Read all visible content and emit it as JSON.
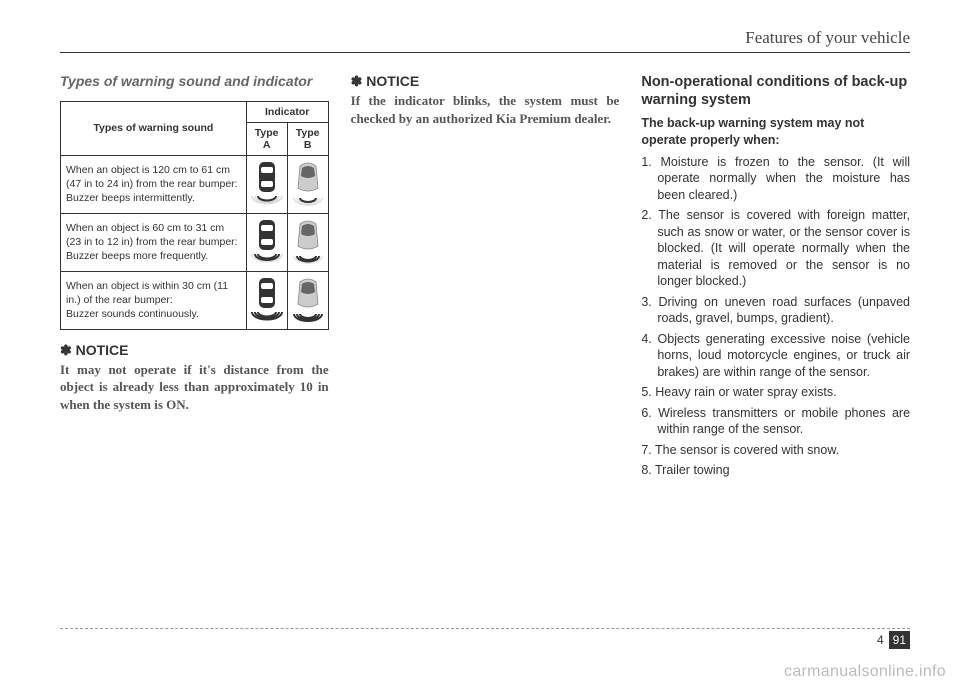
{
  "header": {
    "title": "Features of your vehicle"
  },
  "col1": {
    "subhead": "Types of warning sound and indicator",
    "table": {
      "head_sound": "Types of warning sound",
      "head_indicator": "Indicator",
      "head_typeA": "Type A",
      "head_typeB": "Type B",
      "rows": [
        {
          "desc": "When an object is 120 cm to 61 cm (47 in to 24 in) from the rear bumper:\nBuzzer beeps intermittently.",
          "arcs": 1
        },
        {
          "desc": "When an object is 60 cm to 31 cm (23 in to 12 in) from the rear bumper:\nBuzzer beeps more frequently.",
          "arcs": 2
        },
        {
          "desc": "When an object is within 30 cm (11 in.) of the rear bumper:\nBuzzer sounds continuously.",
          "arcs": 3
        }
      ]
    },
    "notice_label": "✽ NOTICE",
    "notice_text": "It may not operate if it's distance from the object is already less than approximately 10 in when the system is ON."
  },
  "col2": {
    "notice_label": "✽ NOTICE",
    "notice_text": "If the indicator blinks, the system must be checked by an authorized Kia Premium dealer."
  },
  "col3": {
    "title": "Non-operational conditions of back-up warning system",
    "lead": "The back-up warning system may not operate properly when:",
    "items": [
      "1. Moisture is frozen to the sensor. (It will operate normally when the moisture has been cleared.)",
      "2. The sensor is covered with foreign matter, such as snow or water, or the sensor cover is blocked. (It will operate normally when the material is removed or the sensor is no longer blocked.)",
      "3. Driving on uneven road surfaces (unpaved roads, gravel, bumps, gradient).",
      "4. Objects generating excessive noise (vehicle horns, loud motorcycle engines, or truck air brakes) are within range of the sensor.",
      "5. Heavy rain or water spray exists.",
      "6. Wireless transmitters or mobile phones are within range of the sensor.",
      "7. The sensor is covered with snow.",
      "8. Trailer towing"
    ]
  },
  "footer": {
    "a": "4",
    "b": "91"
  },
  "watermark": "carmanualsonline.info",
  "icon_colors": {
    "typeA_fill": "#333333",
    "typeB_fill": "#cccccc",
    "arc_stroke": "#333333",
    "highlight": "#ffffff"
  }
}
